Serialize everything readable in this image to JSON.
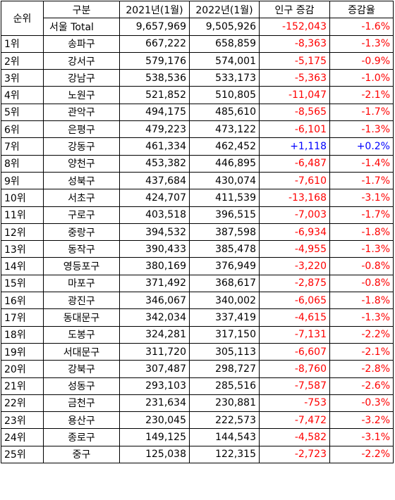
{
  "headers": {
    "rank": "순위",
    "district": "구분",
    "pop2021": "2021년(1월)",
    "pop2022": "2022년(1월)",
    "change": "인구 증감",
    "rate": "증감율"
  },
  "total": {
    "district": "서울 Total",
    "pop2021": "9,657,969",
    "pop2022": "9,505,926",
    "change": "-152,043",
    "rate": "-1.6%"
  },
  "rows": [
    {
      "rank": "1위",
      "district": "송파구",
      "pop2021": "667,222",
      "pop2022": "658,859",
      "change": "-8,363",
      "rate": "-1.3%"
    },
    {
      "rank": "2위",
      "district": "강서구",
      "pop2021": "579,176",
      "pop2022": "574,001",
      "change": "-5,175",
      "rate": "-0.9%"
    },
    {
      "rank": "3위",
      "district": "강남구",
      "pop2021": "538,536",
      "pop2022": "533,173",
      "change": "-5,363",
      "rate": "-1.0%"
    },
    {
      "rank": "4위",
      "district": "노원구",
      "pop2021": "521,852",
      "pop2022": "510,805",
      "change": "-11,047",
      "rate": "-2.1%"
    },
    {
      "rank": "5위",
      "district": "관악구",
      "pop2021": "494,175",
      "pop2022": "485,610",
      "change": "-8,565",
      "rate": "-1.7%"
    },
    {
      "rank": "6위",
      "district": "은평구",
      "pop2021": "479,223",
      "pop2022": "473,122",
      "change": "-6,101",
      "rate": "-1.3%"
    },
    {
      "rank": "7위",
      "district": "강동구",
      "pop2021": "461,334",
      "pop2022": "462,452",
      "change": "+1,118",
      "rate": "+0.2%"
    },
    {
      "rank": "8위",
      "district": "양천구",
      "pop2021": "453,382",
      "pop2022": "446,895",
      "change": "-6,487",
      "rate": "-1.4%"
    },
    {
      "rank": "9위",
      "district": "성북구",
      "pop2021": "437,684",
      "pop2022": "430,074",
      "change": "-7,610",
      "rate": "-1.7%"
    },
    {
      "rank": "10위",
      "district": "서초구",
      "pop2021": "424,707",
      "pop2022": "411,539",
      "change": "-13,168",
      "rate": "-3.1%"
    },
    {
      "rank": "11위",
      "district": "구로구",
      "pop2021": "403,518",
      "pop2022": "396,515",
      "change": "-7,003",
      "rate": "-1.7%"
    },
    {
      "rank": "12위",
      "district": "중랑구",
      "pop2021": "394,532",
      "pop2022": "387,598",
      "change": "-6,934",
      "rate": "-1.8%"
    },
    {
      "rank": "13위",
      "district": "동작구",
      "pop2021": "390,433",
      "pop2022": "385,478",
      "change": "-4,955",
      "rate": "-1.3%"
    },
    {
      "rank": "14위",
      "district": "영등포구",
      "pop2021": "380,169",
      "pop2022": "376,949",
      "change": "-3,220",
      "rate": "-0.8%"
    },
    {
      "rank": "15위",
      "district": "마포구",
      "pop2021": "371,492",
      "pop2022": "368,617",
      "change": "-2,875",
      "rate": "-0.8%"
    },
    {
      "rank": "16위",
      "district": "광진구",
      "pop2021": "346,067",
      "pop2022": "340,002",
      "change": "-6,065",
      "rate": "-1.8%"
    },
    {
      "rank": "17위",
      "district": "동대문구",
      "pop2021": "342,034",
      "pop2022": "337,419",
      "change": "-4,615",
      "rate": "-1.3%"
    },
    {
      "rank": "18위",
      "district": "도봉구",
      "pop2021": "324,281",
      "pop2022": "317,150",
      "change": "-7,131",
      "rate": "-2.2%"
    },
    {
      "rank": "19위",
      "district": "서대문구",
      "pop2021": "311,720",
      "pop2022": "305,113",
      "change": "-6,607",
      "rate": "-2.1%"
    },
    {
      "rank": "20위",
      "district": "강북구",
      "pop2021": "307,487",
      "pop2022": "298,727",
      "change": "-8,760",
      "rate": "-2.8%"
    },
    {
      "rank": "21위",
      "district": "성동구",
      "pop2021": "293,103",
      "pop2022": "285,516",
      "change": "-7,587",
      "rate": "-2.6%"
    },
    {
      "rank": "22위",
      "district": "금천구",
      "pop2021": "231,634",
      "pop2022": "230,881",
      "change": "-753",
      "rate": "-0.3%"
    },
    {
      "rank": "23위",
      "district": "용산구",
      "pop2021": "230,045",
      "pop2022": "222,573",
      "change": "-7,472",
      "rate": "-3.2%"
    },
    {
      "rank": "24위",
      "district": "종로구",
      "pop2021": "149,125",
      "pop2022": "144,543",
      "change": "-4,582",
      "rate": "-3.1%"
    },
    {
      "rank": "25위",
      "district": "중구",
      "pop2021": "125,038",
      "pop2022": "122,315",
      "change": "-2,723",
      "rate": "-2.2%"
    }
  ],
  "colors": {
    "negative": "#ff0000",
    "positive": "#0000ff"
  }
}
